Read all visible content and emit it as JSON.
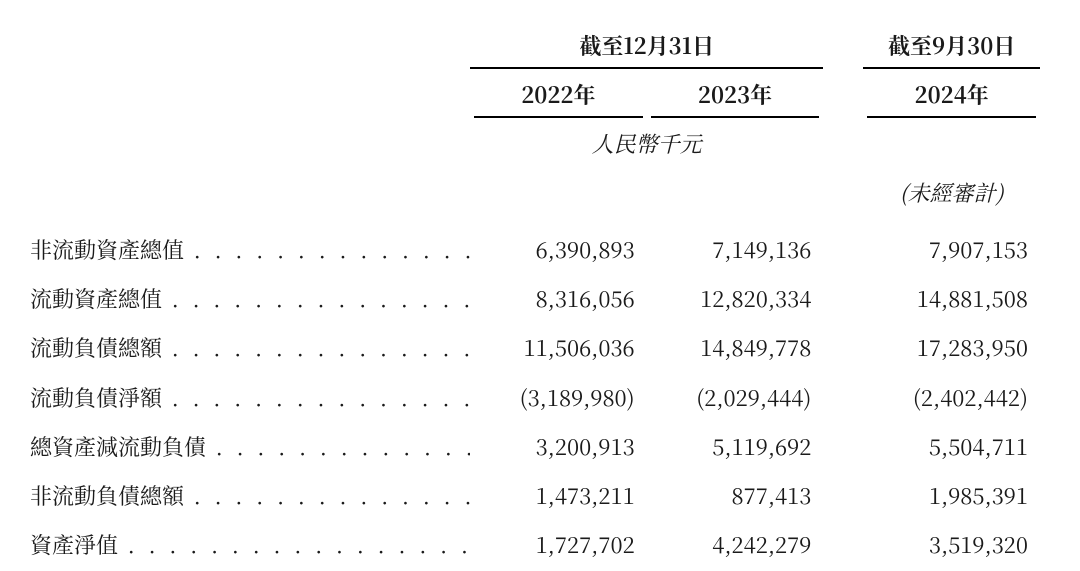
{
  "table": {
    "type": "table",
    "background_color": "#ffffff",
    "text_color": "#1a1a1a",
    "font_family": "serif",
    "label_fontsize": 22,
    "value_fontsize": 22,
    "header_fontweight": "bold",
    "unit_fontstyle": "italic",
    "rule_color": "#000000",
    "rule_width": 2,
    "column_groups": [
      {
        "title": "截至12月31日",
        "columns": [
          "2022年",
          "2023年"
        ],
        "unit": "人民幣千元"
      },
      {
        "title": "截至9月30日",
        "columns": [
          "2024年"
        ],
        "note": "(未經審計)"
      }
    ],
    "rows": [
      {
        "label": "非流動資產總值",
        "values": [
          "6,390,893",
          "7,149,136",
          "7,907,153"
        ]
      },
      {
        "label": "流動資產總值",
        "values": [
          "8,316,056",
          "12,820,334",
          "14,881,508"
        ]
      },
      {
        "label": "流動負債總額",
        "values": [
          "11,506,036",
          "14,849,778",
          "17,283,950"
        ]
      },
      {
        "label": "流動負債淨額",
        "values": [
          "(3,189,980)",
          "(2,029,444)",
          "(2,402,442)"
        ]
      },
      {
        "label": "總資產減流動負債",
        "values": [
          "3,200,913",
          "5,119,692",
          "5,504,711"
        ]
      },
      {
        "label": "非流動負債總額",
        "values": [
          "1,473,211",
          "877,413",
          "1,985,391"
        ]
      },
      {
        "label": "資產淨值",
        "values": [
          "1,727,702",
          "4,242,279",
          "3,519,320"
        ]
      }
    ]
  }
}
